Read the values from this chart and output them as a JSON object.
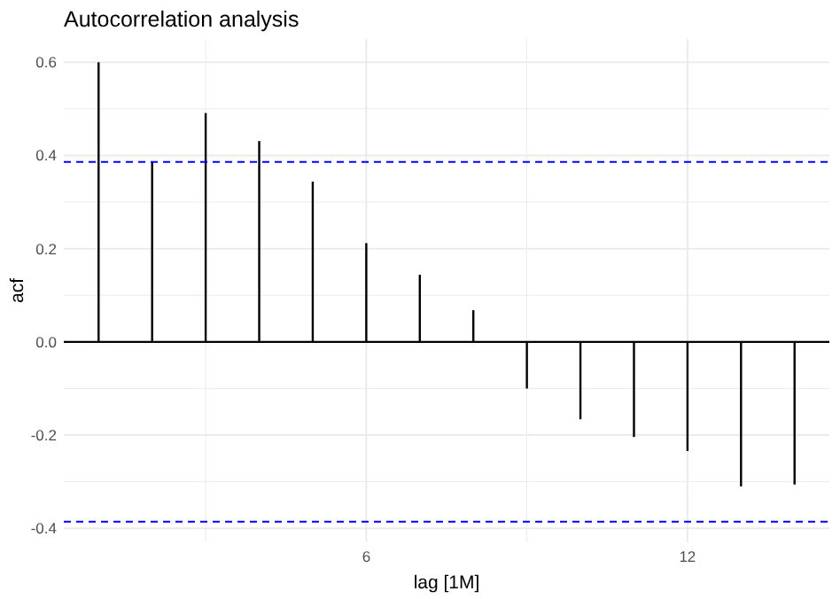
{
  "chart_data": {
    "type": "bar",
    "title": "Autocorrelation analysis",
    "xlabel": "lag [1M]",
    "ylabel": "acf",
    "x": [
      1,
      2,
      3,
      4,
      5,
      6,
      7,
      8,
      9,
      10,
      11,
      12,
      13,
      14
    ],
    "values": [
      0.6,
      0.387,
      0.491,
      0.431,
      0.344,
      0.212,
      0.144,
      0.068,
      -0.1,
      -0.166,
      -0.204,
      -0.234,
      -0.31,
      -0.306
    ],
    "color": "#000000",
    "xlim": [
      0.35,
      14.65
    ],
    "xticks": [
      {
        "value": 3,
        "label": null
      },
      6,
      {
        "value": 9,
        "label": null
      },
      12
    ],
    "ylim": [
      -0.43,
      0.65
    ],
    "yticks": [
      -0.4,
      {
        "value": -0.3,
        "label": null
      },
      -0.2,
      {
        "value": -0.1,
        "label": null
      },
      "0.0",
      {
        "value": 0.1,
        "label": null
      },
      0.2,
      {
        "value": 0.3,
        "label": null
      },
      0.4,
      {
        "value": 0.5,
        "label": null
      },
      0.6
    ],
    "ref_lines": [
      {
        "axis": "y",
        "value": 0.386,
        "color": "#0000ff",
        "line_style": "dashed"
      },
      {
        "axis": "y",
        "value": -0.386,
        "color": "#0000ff",
        "line_style": "dashed"
      }
    ],
    "grid": true
  }
}
